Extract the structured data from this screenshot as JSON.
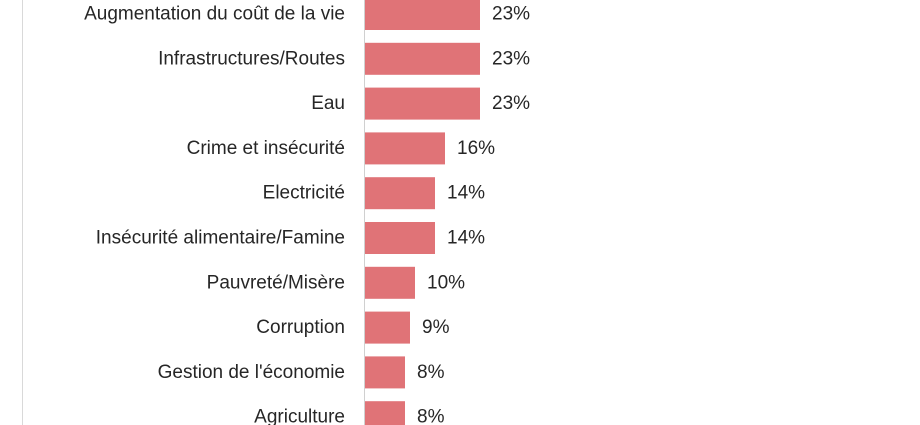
{
  "chart_data": {
    "type": "bar",
    "orientation": "horizontal",
    "categories": [
      "Augmentation du coût de la vie",
      "Infrastructures/Routes",
      "Eau",
      "Crime et insécurité",
      "Electricité",
      "Insécurité alimentaire/Famine",
      "Pauvreté/Misère",
      "Corruption",
      "Gestion de l'économie",
      "Agriculture"
    ],
    "values": [
      23,
      23,
      23,
      16,
      14,
      14,
      10,
      9,
      8,
      8
    ],
    "value_labels": [
      "23%",
      "23%",
      "23%",
      "16%",
      "14%",
      "14%",
      "10%",
      "9%",
      "8%",
      "8%"
    ],
    "unit": "%",
    "bar_color": "#e07377",
    "grid": false,
    "legend": "none"
  }
}
